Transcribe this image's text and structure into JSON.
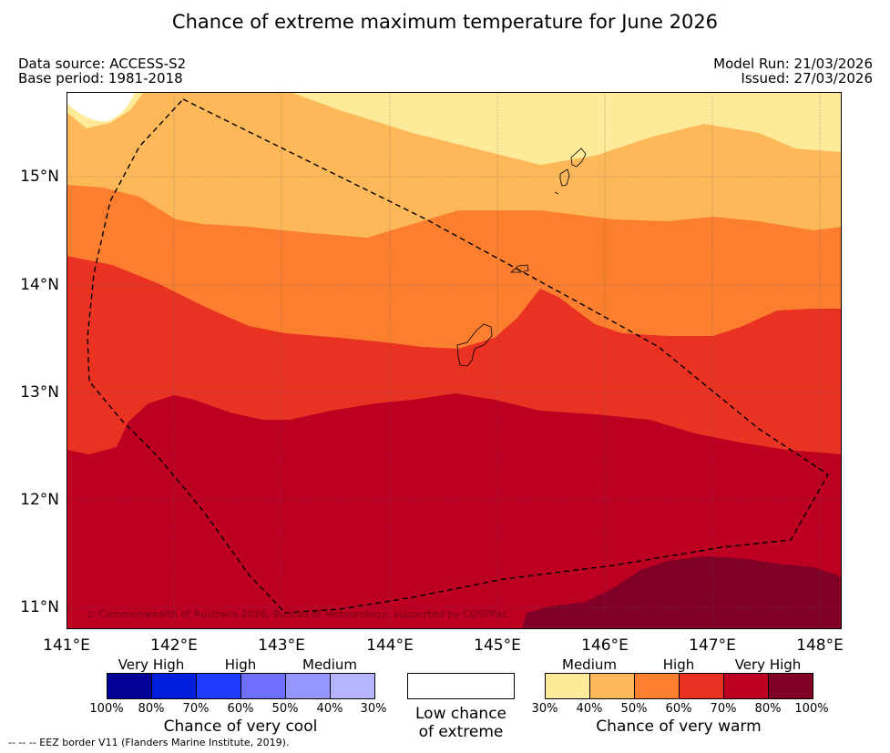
{
  "title": "Chance of extreme maximum temperature for June 2026",
  "meta": {
    "data_source": "Data source: ACCESS-S2",
    "base_period": "Base period: 1981-2018",
    "model_run": "Model Run: 21/03/2026",
    "issued": "Issued: 27/03/2026"
  },
  "map": {
    "lat_ticks": [
      "15°N",
      "14°N",
      "13°N",
      "12°N",
      "11°N"
    ],
    "lon_ticks": [
      "141°E",
      "142°E",
      "143°E",
      "144°E",
      "145°E",
      "146°E",
      "147°E",
      "148°E"
    ],
    "copyright": "© Commonwealth of Australia 2026, Bureau of Meteorology, supported by COSPPac",
    "colors": {
      "warm_30_40": "#feeb9a",
      "warm_40_50": "#fdb85a",
      "warm_50_60": "#fc7f30",
      "warm_60_70": "#ea3223",
      "warm_70_80": "#bd0022",
      "warm_80_100": "#800026"
    }
  },
  "legend": {
    "cool": {
      "labels": [
        "Very High",
        "High",
        "Medium"
      ],
      "percents": [
        "100%",
        "80%",
        "70%",
        "60%",
        "50%",
        "40%",
        "30%"
      ],
      "colors": [
        "#000096",
        "#001ede",
        "#1e3cff",
        "#6e6eff",
        "#9696ff",
        "#b4b4ff"
      ],
      "title": "Chance of very cool"
    },
    "neutral": {
      "line1": "Low chance",
      "line2": "of extreme"
    },
    "warm": {
      "labels": [
        "Medium",
        "High",
        "Very High"
      ],
      "percents": [
        "30%",
        "40%",
        "50%",
        "60%",
        "70%",
        "80%",
        "100%"
      ],
      "colors": [
        "#feeb9a",
        "#fdb85a",
        "#fc7f30",
        "#ea3223",
        "#bd0022",
        "#800026"
      ],
      "title": "Chance of very warm"
    }
  },
  "footnote": "--  --  -- EEZ border V11 (Flanders Marine Institute, 2019)."
}
